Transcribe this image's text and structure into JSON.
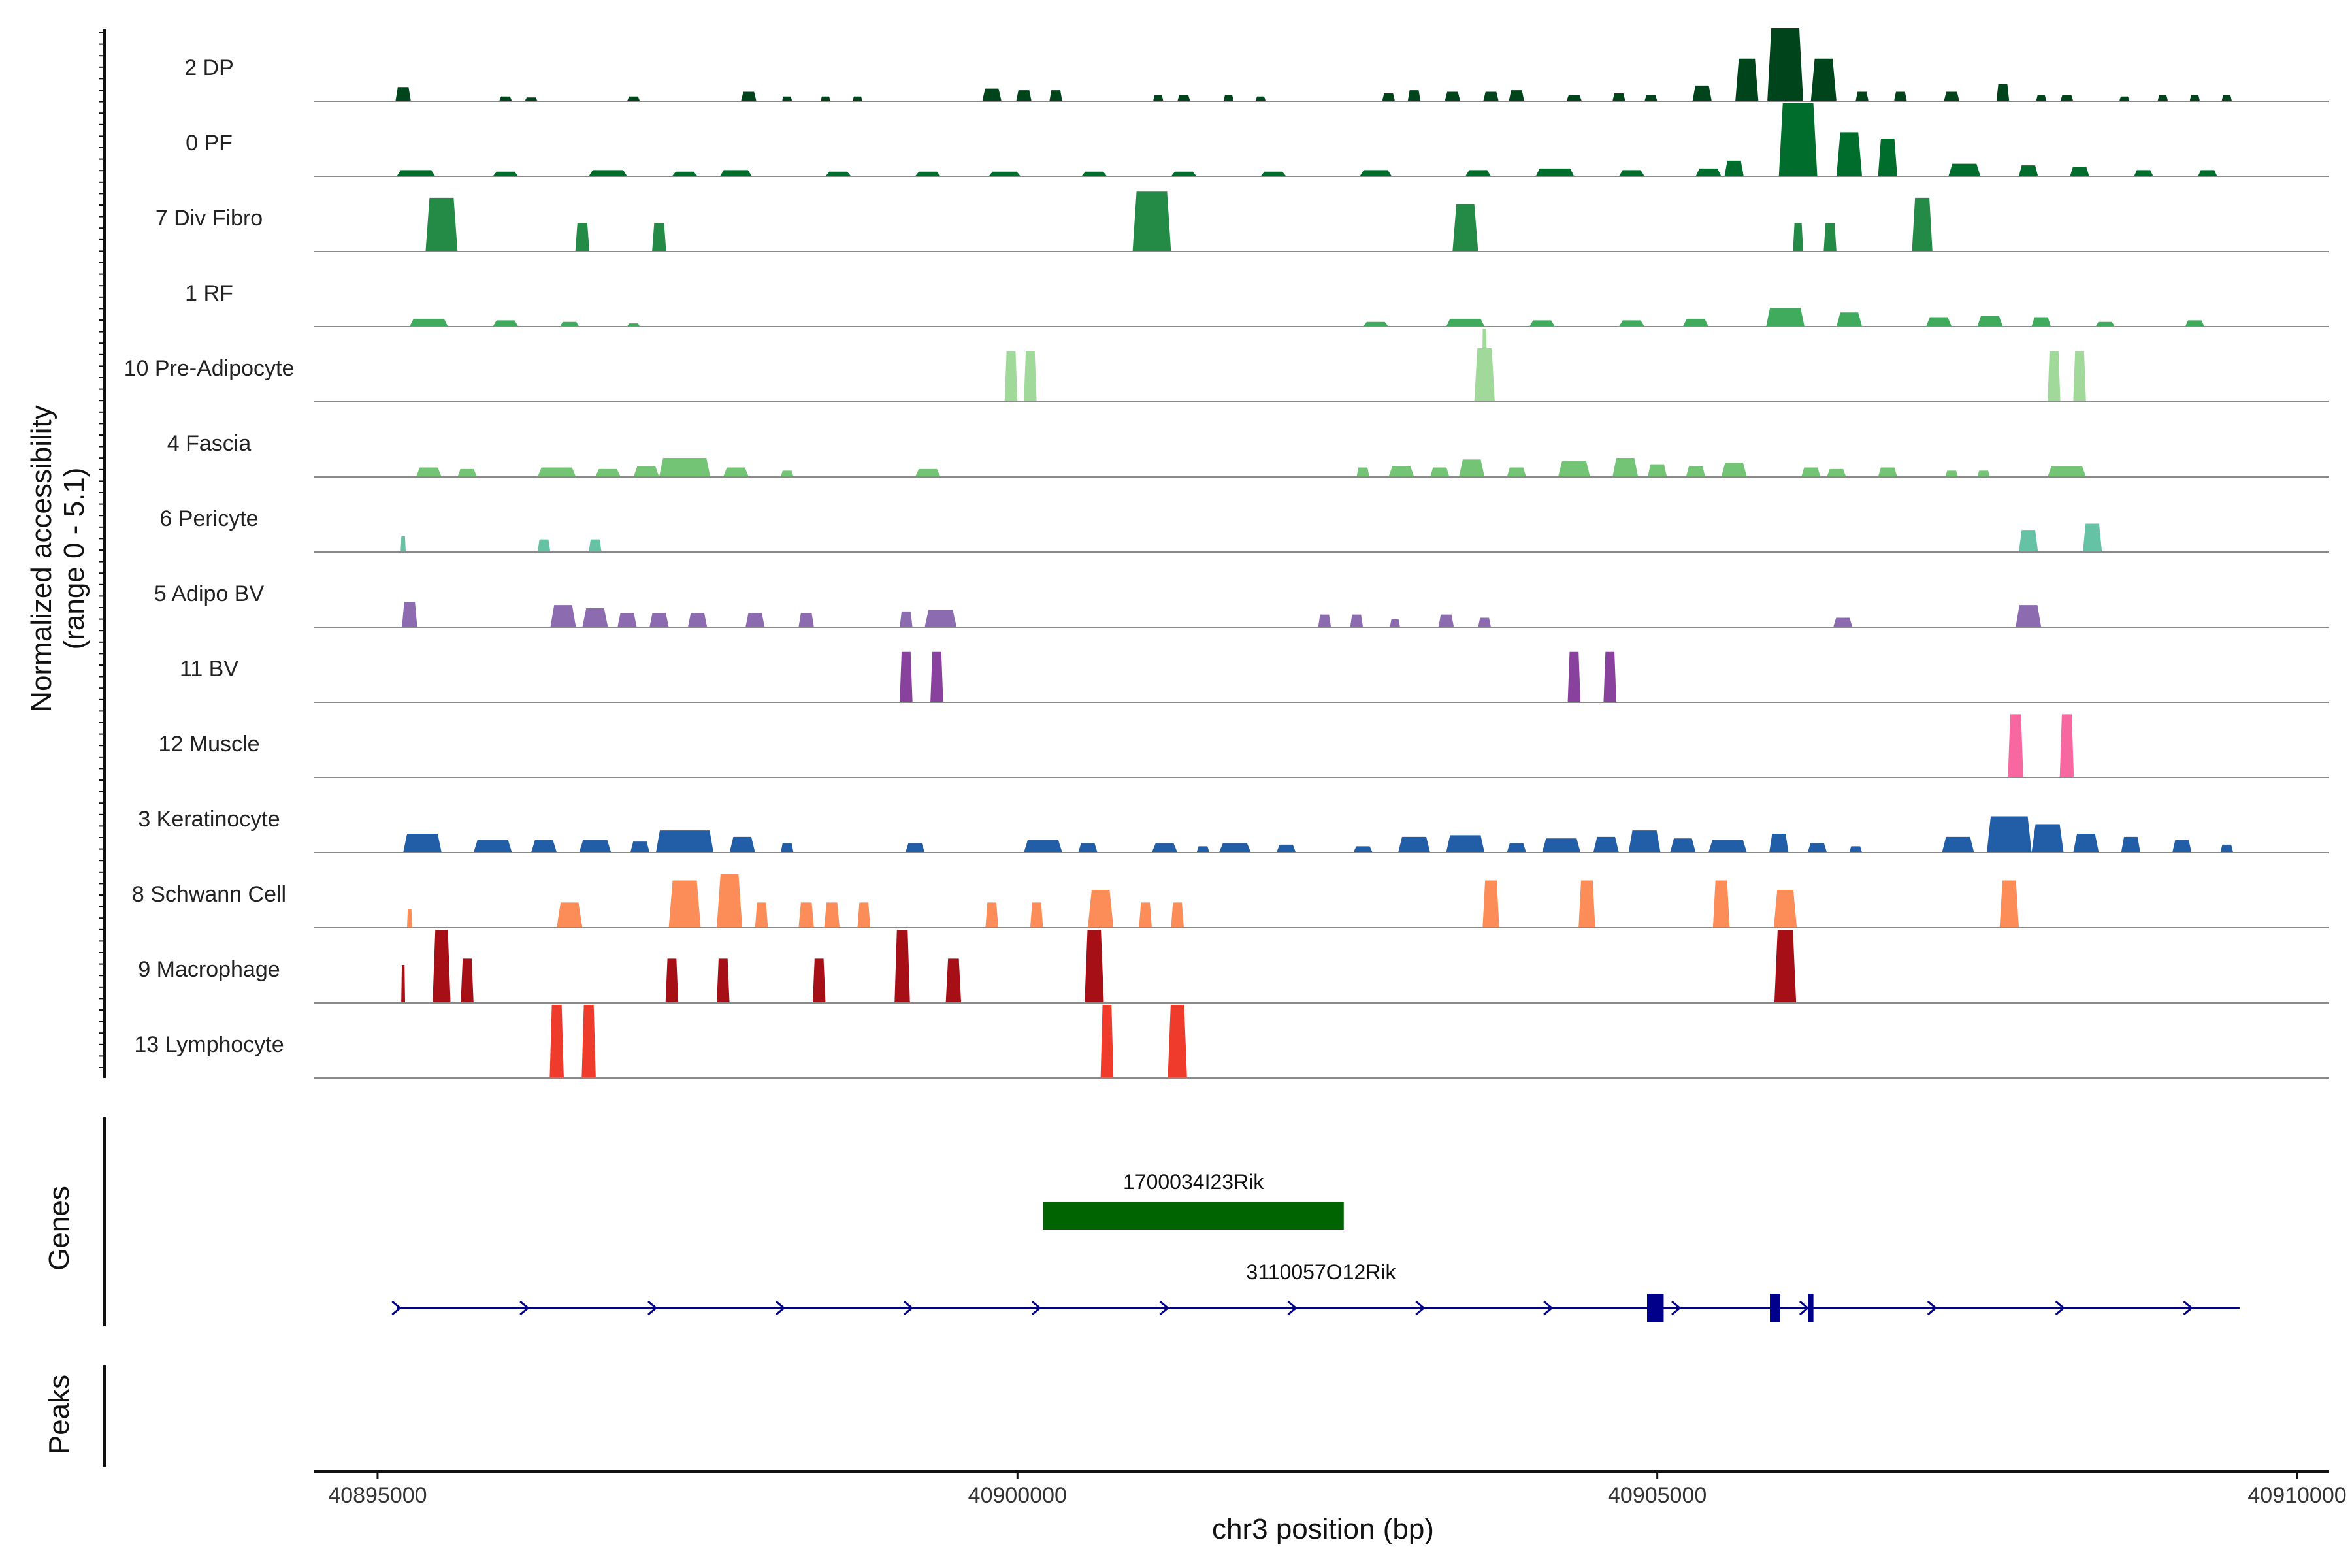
{
  "chart_data": {
    "type": "area",
    "chromosome": "chr3",
    "xlabel": "chr3 position (bp)",
    "ylabel": "Normalized accessibility",
    "ylabel_range": "(range 0 - 5.1)",
    "xlim": [
      40894500,
      40910250
    ],
    "ylim": [
      0,
      5.1
    ],
    "x_ticks": [
      40895000,
      40900000,
      40905000,
      40910000
    ],
    "x_tick_labels": [
      "40895000",
      "40900000",
      "40905000",
      "40910000"
    ],
    "tracks": [
      {
        "name": "2 DP",
        "color": "#00441b",
        "peaks": [
          [
            40895200,
            120,
            0.45
          ],
          [
            40896000,
            100,
            0.15
          ],
          [
            40896200,
            100,
            0.12
          ],
          [
            40897000,
            100,
            0.15
          ],
          [
            40897900,
            120,
            0.3
          ],
          [
            40898200,
            80,
            0.15
          ],
          [
            40898500,
            80,
            0.15
          ],
          [
            40898750,
            80,
            0.15
          ],
          [
            40899800,
            150,
            0.4
          ],
          [
            40900050,
            120,
            0.35
          ],
          [
            40900300,
            100,
            0.35
          ],
          [
            40901100,
            80,
            0.2
          ],
          [
            40901300,
            100,
            0.2
          ],
          [
            40901650,
            80,
            0.2
          ],
          [
            40901900,
            80,
            0.15
          ],
          [
            40902900,
            100,
            0.25
          ],
          [
            40903100,
            100,
            0.35
          ],
          [
            40903400,
            120,
            0.3
          ],
          [
            40903700,
            120,
            0.3
          ],
          [
            40903900,
            120,
            0.35
          ],
          [
            40904350,
            120,
            0.2
          ],
          [
            40904700,
            100,
            0.25
          ],
          [
            40904950,
            100,
            0.2
          ],
          [
            40905350,
            150,
            0.5
          ],
          [
            40905700,
            180,
            1.35
          ],
          [
            40906000,
            280,
            2.5
          ],
          [
            40906300,
            200,
            1.35
          ],
          [
            40906600,
            100,
            0.3
          ],
          [
            40906900,
            100,
            0.3
          ],
          [
            40907300,
            120,
            0.3
          ],
          [
            40907700,
            100,
            0.55
          ],
          [
            40908000,
            80,
            0.2
          ],
          [
            40908200,
            100,
            0.2
          ],
          [
            40908650,
            80,
            0.15
          ],
          [
            40908950,
            80,
            0.2
          ],
          [
            40909200,
            80,
            0.2
          ],
          [
            40909450,
            80,
            0.2
          ]
        ]
      },
      {
        "name": "0 PF",
        "color": "#006d2c",
        "peaks": [
          [
            40895300,
            300,
            0.2
          ],
          [
            40896000,
            200,
            0.15
          ],
          [
            40896800,
            300,
            0.2
          ],
          [
            40897400,
            200,
            0.15
          ],
          [
            40897800,
            250,
            0.2
          ],
          [
            40898600,
            200,
            0.15
          ],
          [
            40899300,
            200,
            0.15
          ],
          [
            40899900,
            250,
            0.15
          ],
          [
            40900600,
            200,
            0.15
          ],
          [
            40901300,
            200,
            0.15
          ],
          [
            40902000,
            200,
            0.15
          ],
          [
            40902800,
            250,
            0.2
          ],
          [
            40903600,
            200,
            0.2
          ],
          [
            40904200,
            300,
            0.25
          ],
          [
            40904800,
            200,
            0.2
          ],
          [
            40905400,
            200,
            0.25
          ],
          [
            40905600,
            150,
            0.5
          ],
          [
            40906100,
            300,
            2.7
          ],
          [
            40906500,
            200,
            1.4
          ],
          [
            40906800,
            150,
            1.2
          ],
          [
            40907400,
            250,
            0.4
          ],
          [
            40907900,
            150,
            0.35
          ],
          [
            40908300,
            150,
            0.3
          ],
          [
            40908800,
            150,
            0.2
          ],
          [
            40909300,
            150,
            0.2
          ]
        ]
      },
      {
        "name": "7 Div Fibro",
        "color": "#238b45",
        "peaks": [
          [
            40895500,
            250,
            1.7
          ],
          [
            40896600,
            110,
            0.9
          ],
          [
            40897200,
            110,
            0.9
          ],
          [
            40901050,
            300,
            1.9
          ],
          [
            40903500,
            200,
            1.5
          ],
          [
            40906100,
            80,
            0.9
          ],
          [
            40906350,
            100,
            0.9
          ],
          [
            40907070,
            160,
            1.7
          ]
        ]
      },
      {
        "name": "1 RF",
        "color": "#41ab5d",
        "peaks": [
          [
            40895400,
            300,
            0.25
          ],
          [
            40896000,
            200,
            0.2
          ],
          [
            40896500,
            150,
            0.15
          ],
          [
            40897000,
            100,
            0.1
          ],
          [
            40902800,
            200,
            0.15
          ],
          [
            40903500,
            300,
            0.25
          ],
          [
            40904100,
            200,
            0.2
          ],
          [
            40904800,
            200,
            0.2
          ],
          [
            40905300,
            200,
            0.25
          ],
          [
            40906000,
            300,
            0.6
          ],
          [
            40906500,
            200,
            0.45
          ],
          [
            40907200,
            200,
            0.3
          ],
          [
            40907600,
            200,
            0.35
          ],
          [
            40908000,
            150,
            0.3
          ],
          [
            40908500,
            150,
            0.15
          ],
          [
            40909200,
            150,
            0.2
          ]
        ]
      },
      {
        "name": "10 Pre-Adipocyte",
        "color": "#a1d99b",
        "peaks": [
          [
            40899950,
            100,
            1.6
          ],
          [
            40900100,
            100,
            1.6
          ],
          [
            40903650,
            160,
            1.7
          ],
          [
            40903650,
            40,
            3.3
          ],
          [
            40908100,
            100,
            1.6
          ],
          [
            40908300,
            100,
            1.6
          ]
        ]
      },
      {
        "name": "4 Fascia",
        "color": "#74c476",
        "peaks": [
          [
            40895400,
            200,
            0.3
          ],
          [
            40895700,
            150,
            0.25
          ],
          [
            40896400,
            300,
            0.3
          ],
          [
            40896800,
            200,
            0.25
          ],
          [
            40897100,
            200,
            0.35
          ],
          [
            40897400,
            400,
            0.6
          ],
          [
            40897800,
            200,
            0.3
          ],
          [
            40898200,
            100,
            0.2
          ],
          [
            40899300,
            200,
            0.25
          ],
          [
            40902700,
            100,
            0.3
          ],
          [
            40903000,
            200,
            0.35
          ],
          [
            40903300,
            150,
            0.3
          ],
          [
            40903550,
            200,
            0.55
          ],
          [
            40903900,
            150,
            0.3
          ],
          [
            40904350,
            250,
            0.5
          ],
          [
            40904750,
            200,
            0.6
          ],
          [
            40905000,
            150,
            0.4
          ],
          [
            40905300,
            150,
            0.35
          ],
          [
            40905600,
            200,
            0.45
          ],
          [
            40906200,
            150,
            0.3
          ],
          [
            40906400,
            150,
            0.25
          ],
          [
            40906800,
            150,
            0.3
          ],
          [
            40907300,
            100,
            0.2
          ],
          [
            40907550,
            100,
            0.2
          ],
          [
            40908200,
            300,
            0.35
          ]
        ]
      },
      {
        "name": "6 Pericyte",
        "color": "#66c2a4",
        "peaks": [
          [
            40895200,
            40,
            0.5
          ],
          [
            40896300,
            100,
            0.4
          ],
          [
            40896700,
            100,
            0.4
          ],
          [
            40907900,
            150,
            0.7
          ],
          [
            40908400,
            150,
            0.9
          ]
        ]
      },
      {
        "name": "5 Adipo BV",
        "color": "#8c6bb1",
        "peaks": [
          [
            40895250,
            120,
            0.8
          ],
          [
            40896450,
            200,
            0.7
          ],
          [
            40896700,
            200,
            0.6
          ],
          [
            40896950,
            150,
            0.45
          ],
          [
            40897200,
            150,
            0.45
          ],
          [
            40897500,
            150,
            0.45
          ],
          [
            40897950,
            150,
            0.45
          ],
          [
            40898350,
            120,
            0.45
          ],
          [
            40899130,
            100,
            0.5
          ],
          [
            40899400,
            250,
            0.55
          ],
          [
            40902400,
            100,
            0.4
          ],
          [
            40902650,
            100,
            0.4
          ],
          [
            40902950,
            80,
            0.25
          ],
          [
            40903350,
            120,
            0.4
          ],
          [
            40903650,
            100,
            0.3
          ],
          [
            40906450,
            150,
            0.3
          ],
          [
            40907900,
            200,
            0.7
          ]
        ]
      },
      {
        "name": "11 BV",
        "color": "#88419d",
        "peaks": [
          [
            40899130,
            100,
            1.6
          ],
          [
            40899370,
            100,
            1.6
          ],
          [
            40904350,
            100,
            1.6
          ],
          [
            40904630,
            100,
            1.6
          ]
        ]
      },
      {
        "name": "12 Muscle",
        "color": "#f768a1",
        "peaks": [
          [
            40907800,
            120,
            2.0
          ],
          [
            40908200,
            110,
            2.0
          ]
        ]
      },
      {
        "name": "3 Keratinocyte",
        "color": "#225ea8",
        "peaks": [
          [
            40895350,
            300,
            0.6
          ],
          [
            40895900,
            300,
            0.4
          ],
          [
            40896300,
            200,
            0.4
          ],
          [
            40896700,
            250,
            0.4
          ],
          [
            40897050,
            150,
            0.35
          ],
          [
            40897400,
            450,
            0.7
          ],
          [
            40897850,
            200,
            0.5
          ],
          [
            40898200,
            100,
            0.3
          ],
          [
            40899200,
            150,
            0.3
          ],
          [
            40900200,
            300,
            0.4
          ],
          [
            40900550,
            150,
            0.3
          ],
          [
            40901150,
            200,
            0.3
          ],
          [
            40901450,
            100,
            0.2
          ],
          [
            40901700,
            250,
            0.3
          ],
          [
            40902100,
            150,
            0.25
          ],
          [
            40902700,
            150,
            0.2
          ],
          [
            40903100,
            250,
            0.5
          ],
          [
            40903500,
            300,
            0.55
          ],
          [
            40903900,
            150,
            0.3
          ],
          [
            40904250,
            300,
            0.45
          ],
          [
            40904600,
            200,
            0.5
          ],
          [
            40904900,
            250,
            0.7
          ],
          [
            40905200,
            200,
            0.45
          ],
          [
            40905550,
            300,
            0.4
          ],
          [
            40905950,
            150,
            0.6
          ],
          [
            40906250,
            150,
            0.3
          ],
          [
            40906550,
            100,
            0.2
          ],
          [
            40907350,
            250,
            0.5
          ],
          [
            40907750,
            350,
            1.15
          ],
          [
            40908050,
            250,
            0.9
          ],
          [
            40908350,
            200,
            0.6
          ],
          [
            40908700,
            150,
            0.5
          ],
          [
            40909100,
            150,
            0.4
          ],
          [
            40909450,
            100,
            0.25
          ]
        ]
      },
      {
        "name": "8 Schwann Cell",
        "color": "#fc8d59",
        "peaks": [
          [
            40895250,
            40,
            0.6
          ],
          [
            40896500,
            200,
            0.8
          ],
          [
            40897400,
            250,
            1.5
          ],
          [
            40897750,
            200,
            1.7
          ],
          [
            40898000,
            100,
            0.8
          ],
          [
            40898350,
            120,
            0.8
          ],
          [
            40898550,
            120,
            0.8
          ],
          [
            40898800,
            100,
            0.8
          ],
          [
            40899800,
            100,
            0.8
          ],
          [
            40900150,
            100,
            0.8
          ],
          [
            40900650,
            200,
            1.2
          ],
          [
            40901000,
            100,
            0.8
          ],
          [
            40901250,
            100,
            0.8
          ],
          [
            40903700,
            130,
            1.5
          ],
          [
            40904450,
            130,
            1.5
          ],
          [
            40905500,
            130,
            1.5
          ],
          [
            40906000,
            180,
            1.2
          ],
          [
            40907750,
            150,
            1.5
          ]
        ]
      },
      {
        "name": "9 Macrophage",
        "color": "#a50f15",
        "peaks": [
          [
            40895200,
            30,
            1.2
          ],
          [
            40895500,
            140,
            2.6
          ],
          [
            40895700,
            100,
            1.4
          ],
          [
            40897300,
            100,
            1.4
          ],
          [
            40897700,
            100,
            1.4
          ],
          [
            40898450,
            100,
            1.4
          ],
          [
            40899100,
            120,
            2.6
          ],
          [
            40899500,
            120,
            1.4
          ],
          [
            40900600,
            150,
            2.5
          ],
          [
            40906000,
            170,
            2.6
          ]
        ]
      },
      {
        "name": "13 Lymphocyte",
        "color": "#ef3b2c",
        "peaks": [
          [
            40896400,
            110,
            4.5
          ],
          [
            40896650,
            110,
            4.5
          ],
          [
            40900700,
            100,
            4.5
          ],
          [
            40901250,
            150,
            4.5
          ]
        ]
      }
    ],
    "genes": [
      {
        "name": "1700034I23Rik",
        "start": 40900200,
        "end": 40902550,
        "color": "#006400",
        "type": "exon-block"
      },
      {
        "name": "3110057O12Rik",
        "start": 40895150,
        "end": 40909550,
        "color": "#00008b",
        "strand": "+",
        "exons": [
          [
            40904920,
            40905050
          ],
          [
            40905880,
            40905960
          ],
          [
            40906180,
            40906220
          ]
        ],
        "arrow_step": 1000
      }
    ],
    "panels": [
      "Genes",
      "Peaks"
    ]
  }
}
